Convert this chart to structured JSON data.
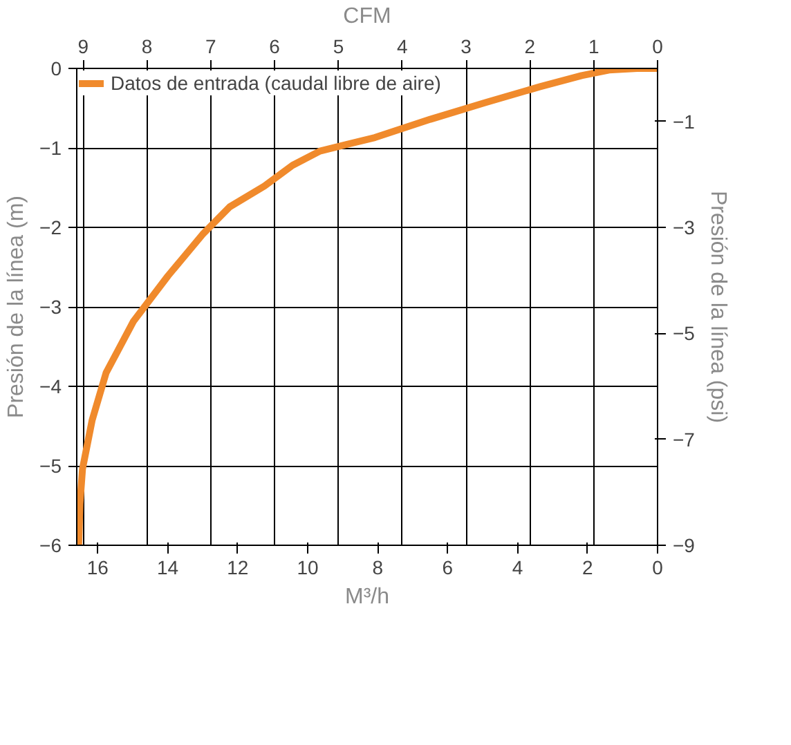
{
  "chart_data": {
    "type": "line",
    "xlabel": "CFM",
    "x2label": "M³/h",
    "ylabel": "Presión de la línea (m)",
    "y2label": "Presión de la línea (psi)",
    "xlim": [
      9.1,
      0
    ],
    "xticks": [
      9,
      8,
      7,
      6,
      5,
      4,
      3,
      2,
      1,
      0
    ],
    "x2lim": [
      16.6,
      0
    ],
    "x2ticks": [
      16,
      14,
      12,
      10,
      8,
      6,
      4,
      2,
      0
    ],
    "ylim": [
      -6,
      0
    ],
    "yticks": [
      0,
      -1,
      -2,
      -3,
      -4,
      -5,
      -6
    ],
    "y2lim": [
      -9,
      0
    ],
    "y2ticks": [
      -1,
      -3,
      -5,
      -7,
      -9
    ],
    "grid": true,
    "legend": "top left",
    "line_style": "solid",
    "series": [
      {
        "name": "Datos de entrada (caudal libre de aire)",
        "color": "#f08a2c",
        "x": [
          0,
          0.32,
          0.76,
          1.19,
          1.84,
          2.7,
          3.56,
          4.43,
          5.29,
          5.72,
          6.16,
          6.7,
          7.13,
          7.67,
          8.21,
          8.64,
          8.86,
          9.01,
          9.05,
          9.07
        ],
        "values": [
          0,
          0,
          -0.02,
          -0.09,
          -0.23,
          -0.43,
          -0.64,
          -0.87,
          -1.04,
          -1.22,
          -1.48,
          -1.74,
          -2.09,
          -2.61,
          -3.18,
          -3.83,
          -4.43,
          -5.04,
          -5.48,
          -6.0
        ]
      }
    ]
  }
}
